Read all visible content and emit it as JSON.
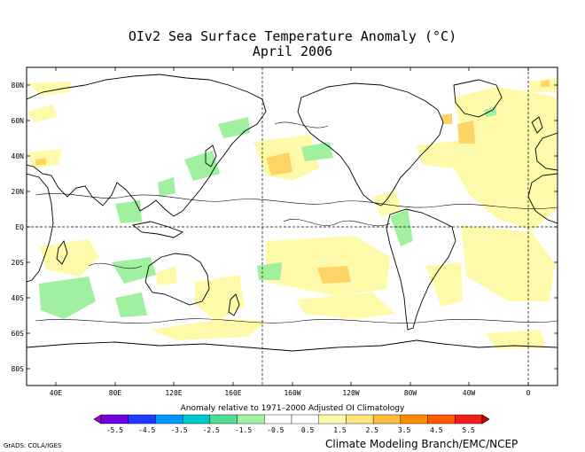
{
  "title": {
    "line1": "OIv2 Sea Surface Temperature Anomaly (°C)",
    "line2": "April 2006"
  },
  "map": {
    "lat_labels": [
      "80N",
      "60N",
      "40N",
      "20N",
      "EQ",
      "20S",
      "40S",
      "60S",
      "80S"
    ],
    "lon_labels": [
      "40E",
      "80E",
      "120E",
      "160E",
      "160W",
      "120W",
      "80W",
      "40W",
      "0"
    ]
  },
  "colorbar": {
    "caption": "Anomaly relative to 1971–2000 Adjusted OI Climatology",
    "tick_labels": [
      "-5.5",
      "-4.5",
      "-3.5",
      "-2.5",
      "-1.5",
      "-0.5",
      "0.5",
      "1.5",
      "2.5",
      "3.5",
      "4.5",
      "5.5"
    ],
    "colors": [
      "#a000c8",
      "#6e00dc",
      "#1e3cff",
      "#0096ff",
      "#00c8c8",
      "#50dc96",
      "#a0f0a0",
      "#ffffff",
      "#ffffff",
      "#fffaaa",
      "#ffe678",
      "#ffbe3c",
      "#ff8c00",
      "#ff5a00",
      "#f01e1e",
      "#c80000"
    ]
  },
  "credits": {
    "grads": "GrADS: COLA/IGES",
    "center": "Climate Modeling Branch/EMC/NCEP"
  }
}
